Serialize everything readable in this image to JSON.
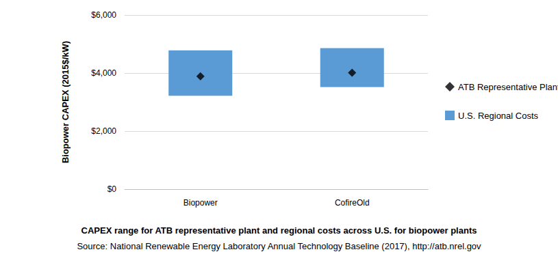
{
  "chart_data": {
    "type": "range_bar",
    "title": "CAPEX range for ATB representative plant and regional costs across U.S. for biopower plants",
    "source": "Source: National Renewable Energy Laboratory Annual Technology Baseline (2017), http://atb.nrel.gov",
    "y_label": "Biopower CAPEX (2015$/kW)",
    "categories": [
      "Biopower",
      "CofireOld"
    ],
    "series": [
      {
        "name": "ATB Representative Plant",
        "type": "scatter",
        "marker": "diamond",
        "color": "#000000",
        "values": [
          3890,
          4010
        ]
      },
      {
        "name": "U.S. Regional Costs",
        "type": "range_bar",
        "color": "#5b9bd5",
        "low": [
          3220,
          3520
        ],
        "high": [
          4780,
          4860
        ]
      }
    ],
    "ylim": [
      0,
      6000
    ],
    "yticks": [
      {
        "value": 0,
        "label": "$0"
      },
      {
        "value": 2000,
        "label": "$2,000"
      },
      {
        "value": 4000,
        "label": "$4,000"
      },
      {
        "value": 6000,
        "label": "$6,000"
      }
    ],
    "grid": true,
    "legend": "right"
  }
}
